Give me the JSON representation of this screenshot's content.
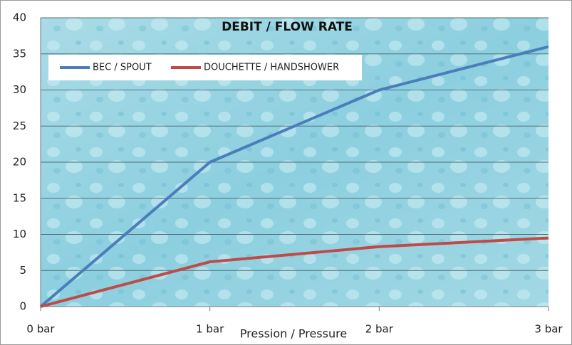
{
  "chart_data": {
    "type": "line",
    "title": "DEBIT / FLOW RATE",
    "x_label": "Pression / Pressure",
    "categories": [
      "0 bar",
      "1 bar",
      "2 bar",
      "3 bar"
    ],
    "series": [
      {
        "name": "BEC / SPOUT",
        "color": "#4a7ebb",
        "values": [
          0,
          20,
          30,
          36
        ]
      },
      {
        "name": "DOUCHETTE / HANDSHOWER",
        "color": "#be4b48",
        "values": [
          0,
          6.2,
          8.3,
          9.5
        ]
      }
    ],
    "ylim": [
      0,
      40
    ],
    "yticks": [
      0,
      5,
      10,
      15,
      20,
      25,
      30,
      35,
      40
    ],
    "grid": true
  }
}
